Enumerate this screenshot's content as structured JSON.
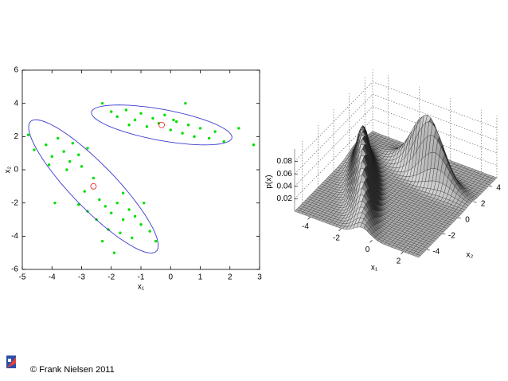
{
  "chart_data": [
    {
      "type": "scatter",
      "xlabel": "x₁",
      "ylabel": "x₂",
      "xlim": [
        -5,
        3
      ],
      "ylim": [
        -6,
        6
      ],
      "xticks": [
        -5,
        -4,
        -3,
        -2,
        -1,
        0,
        1,
        2,
        3
      ],
      "yticks": [
        -6,
        -4,
        -2,
        0,
        2,
        4,
        6
      ],
      "color": "#00e000",
      "ellipse_color": "#3a3ad0",
      "mean_color": "#e02020",
      "points": [
        [
          -2.0,
          3.5
        ],
        [
          -1.8,
          3.2
        ],
        [
          -1.5,
          3.6
        ],
        [
          -1.2,
          3.0
        ],
        [
          -1.0,
          3.4
        ],
        [
          -0.8,
          2.6
        ],
        [
          -0.6,
          3.1
        ],
        [
          -0.4,
          2.8
        ],
        [
          -0.2,
          3.3
        ],
        [
          0,
          2.4
        ],
        [
          0.2,
          2.9
        ],
        [
          0.4,
          2.2
        ],
        [
          0.6,
          2.7
        ],
        [
          0.8,
          2.0
        ],
        [
          1.0,
          2.5
        ],
        [
          1.3,
          1.9
        ],
        [
          1.5,
          2.3
        ],
        [
          1.8,
          1.7
        ],
        [
          -1.4,
          2.7
        ],
        [
          0.1,
          3.0
        ],
        [
          -2.3,
          4.0
        ],
        [
          0.5,
          4.0
        ],
        [
          2.3,
          2.5
        ],
        [
          2.8,
          1.5
        ],
        [
          -4.6,
          1.2
        ],
        [
          -4.2,
          1.5
        ],
        [
          -4.0,
          0.8
        ],
        [
          -3.8,
          1.9
        ],
        [
          -3.6,
          1.1
        ],
        [
          -3.4,
          0.5
        ],
        [
          -3.3,
          1.6
        ],
        [
          -3.1,
          0.9
        ],
        [
          -3.0,
          0.2
        ],
        [
          -2.8,
          1.3
        ],
        [
          -3.5,
          0.0
        ],
        [
          -4.1,
          0.3
        ],
        [
          -2.6,
          -0.5
        ],
        [
          -2.9,
          -1.3
        ],
        [
          -2.4,
          -1.8
        ],
        [
          -2.2,
          -2.2
        ],
        [
          -2.0,
          -2.6
        ],
        [
          -1.8,
          -2.0
        ],
        [
          -1.6,
          -3.0
        ],
        [
          -1.4,
          -2.4
        ],
        [
          -1.2,
          -2.8
        ],
        [
          -1.0,
          -3.3
        ],
        [
          -2.5,
          -3.0
        ],
        [
          -2.1,
          -3.6
        ],
        [
          -1.7,
          -3.8
        ],
        [
          -1.3,
          -4.1
        ],
        [
          -0.9,
          -2.0
        ],
        [
          -0.7,
          -3.7
        ],
        [
          -2.8,
          -2.5
        ],
        [
          -3.1,
          -2.1
        ],
        [
          -1.9,
          -5.0
        ],
        [
          -3.9,
          -2.0
        ],
        [
          -0.5,
          -4.3
        ],
        [
          -2.3,
          -4.3
        ],
        [
          -4.8,
          2.1
        ],
        [
          -1.6,
          -1.4
        ]
      ],
      "components": [
        {
          "mean": [
            -0.3,
            2.7
          ],
          "sd": [
            1.25,
            0.45
          ],
          "angle": -20,
          "weight": 0.35
        },
        {
          "mean": [
            -2.6,
            -1.0
          ],
          "sd": [
            2.24,
            0.45
          ],
          "angle": -63,
          "weight": 0.65
        }
      ]
    },
    {
      "type": "surface",
      "xlabel": "x₁",
      "ylabel": "x₂",
      "zlabel": "p(x)",
      "xlim": [
        -5,
        3
      ],
      "ylim": [
        -5,
        5
      ],
      "zlim": [
        0,
        0.1
      ],
      "xticks": [
        -4,
        -2,
        0,
        2
      ],
      "yticks": [
        -4,
        -2,
        0,
        2,
        4
      ],
      "zticks": [
        0.02,
        0.04,
        0.06,
        0.08
      ],
      "grid": true
    }
  ],
  "footer": "© Frank Nielsen 2011"
}
